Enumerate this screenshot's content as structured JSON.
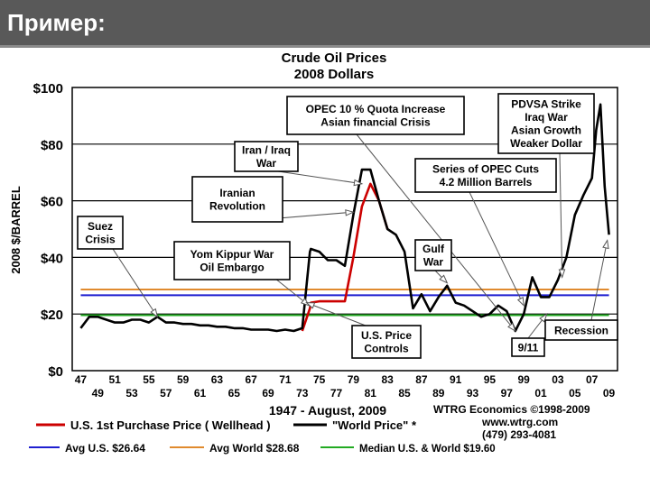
{
  "slide": {
    "title": "Пример:"
  },
  "colors": {
    "header_bg": "#595959",
    "world": "#000000",
    "us": "#cc0000",
    "avg_us": "#1f1fd0",
    "avg_world": "#e08a2e",
    "median": "#22aa22"
  },
  "chart_data": {
    "type": "line",
    "title": "Crude Oil Prices",
    "subtitle": "2008 Dollars",
    "ylabel": "2008 $/BARREL",
    "xlabel": "1947 - August, 2009",
    "ylim": [
      0,
      100
    ],
    "xlim": [
      1946,
      2010
    ],
    "y_ticks": [
      "$0",
      "$20",
      "$40",
      "$60",
      "$80",
      "$100"
    ],
    "x_ticks_top": [
      "47",
      "51",
      "55",
      "59",
      "63",
      "67",
      "71",
      "75",
      "79",
      "83",
      "87",
      "91",
      "95",
      "99",
      "03",
      "07"
    ],
    "x_ticks_bottom": [
      "49",
      "53",
      "57",
      "61",
      "65",
      "69",
      "73",
      "77",
      "81",
      "85",
      "89",
      "93",
      "97",
      "01",
      "05",
      "09"
    ],
    "series": [
      {
        "name": "\"World Price\" *",
        "color": "#000000",
        "x": [
          1947,
          1948,
          1949,
          1950,
          1951,
          1952,
          1953,
          1954,
          1955,
          1956,
          1957,
          1958,
          1959,
          1960,
          1961,
          1962,
          1963,
          1964,
          1965,
          1966,
          1967,
          1968,
          1969,
          1970,
          1971,
          1972,
          1973,
          1973.9,
          1974,
          1975,
          1976,
          1977,
          1978,
          1979,
          1980,
          1981,
          1982,
          1983,
          1984,
          1985,
          1986,
          1987,
          1988,
          1989,
          1990,
          1991,
          1992,
          1993,
          1994,
          1995,
          1996,
          1997,
          1998,
          1999,
          2000,
          2001,
          2002,
          2003,
          2004,
          2005,
          2006,
          2007,
          2007.5,
          2008,
          2008.5,
          2009
        ],
        "values": [
          15,
          19,
          19,
          18,
          17,
          17,
          18,
          18,
          17,
          19,
          17,
          17,
          16.5,
          16.5,
          16,
          16,
          15.5,
          15.5,
          15,
          15,
          14.5,
          14.5,
          14.5,
          14,
          14.5,
          14,
          15,
          42,
          43,
          42,
          39,
          39,
          37,
          55,
          71,
          71,
          60,
          50,
          48,
          42,
          22,
          27,
          21,
          26,
          30,
          24,
          23,
          21,
          19,
          20,
          23,
          21,
          14,
          20,
          33,
          26,
          26,
          32,
          40,
          55,
          62,
          68,
          85,
          94,
          65,
          48
        ]
      },
      {
        "name": "U.S. 1st Purchase Price ( Wellhead )",
        "color": "#cc0000",
        "x": [
          1973,
          1973.9,
          1974,
          1975,
          1976,
          1977,
          1978,
          1979,
          1980,
          1981,
          1982,
          1983
        ],
        "values": [
          14,
          22,
          24,
          24.5,
          24.5,
          24.5,
          24.5,
          40,
          58,
          66,
          60,
          50
        ]
      }
    ],
    "reference_lines": [
      {
        "name": "Avg U.S. $26.64",
        "value": 26.64,
        "color": "#1f1fd0"
      },
      {
        "name": "Avg World $28.68",
        "value": 28.68,
        "color": "#e08a2e"
      },
      {
        "name": "Median U.S. & World $19.60",
        "value": 19.6,
        "color": "#22aa22"
      }
    ],
    "annotations": [
      {
        "lines": [
          "Suez",
          "Crisis"
        ],
        "target": [
          1956,
          19
        ]
      },
      {
        "lines": [
          "Iranian",
          "Revolution"
        ],
        "target": [
          1979,
          56
        ]
      },
      {
        "lines": [
          "Iran / Iraq",
          "War"
        ],
        "target": [
          1980,
          66
        ]
      },
      {
        "lines": [
          "Yom Kippur War",
          "Oil Embargo"
        ],
        "target": [
          1973.8,
          23
        ]
      },
      {
        "lines": [
          "OPEC 10 % Quota Increase",
          "Asian financial Crisis"
        ],
        "target": [
          1998,
          14
        ]
      },
      {
        "lines": [
          "PDVSA Strike",
          "Iraq War",
          "Asian Growth",
          "Weaker Dollar"
        ],
        "target": [
          2003.5,
          33
        ]
      },
      {
        "lines": [
          "Series of OPEC Cuts",
          "4.2 Million Barrels"
        ],
        "target": [
          1999,
          23
        ]
      },
      {
        "lines": [
          "Gulf",
          "War"
        ],
        "target": [
          1990,
          31
        ]
      },
      {
        "lines": [
          "U.S. Price",
          "Controls"
        ],
        "target": [
          1973.5,
          24
        ]
      },
      {
        "lines": [
          "9/11"
        ],
        "target": [
          2001.7,
          20
        ]
      },
      {
        "lines": [
          "Recession"
        ],
        "target": [
          2008.8,
          46
        ]
      }
    ],
    "credits": [
      "WTRG Economics  ©1998-2009",
      "www.wtrg.com",
      "(479) 293-4081"
    ]
  }
}
